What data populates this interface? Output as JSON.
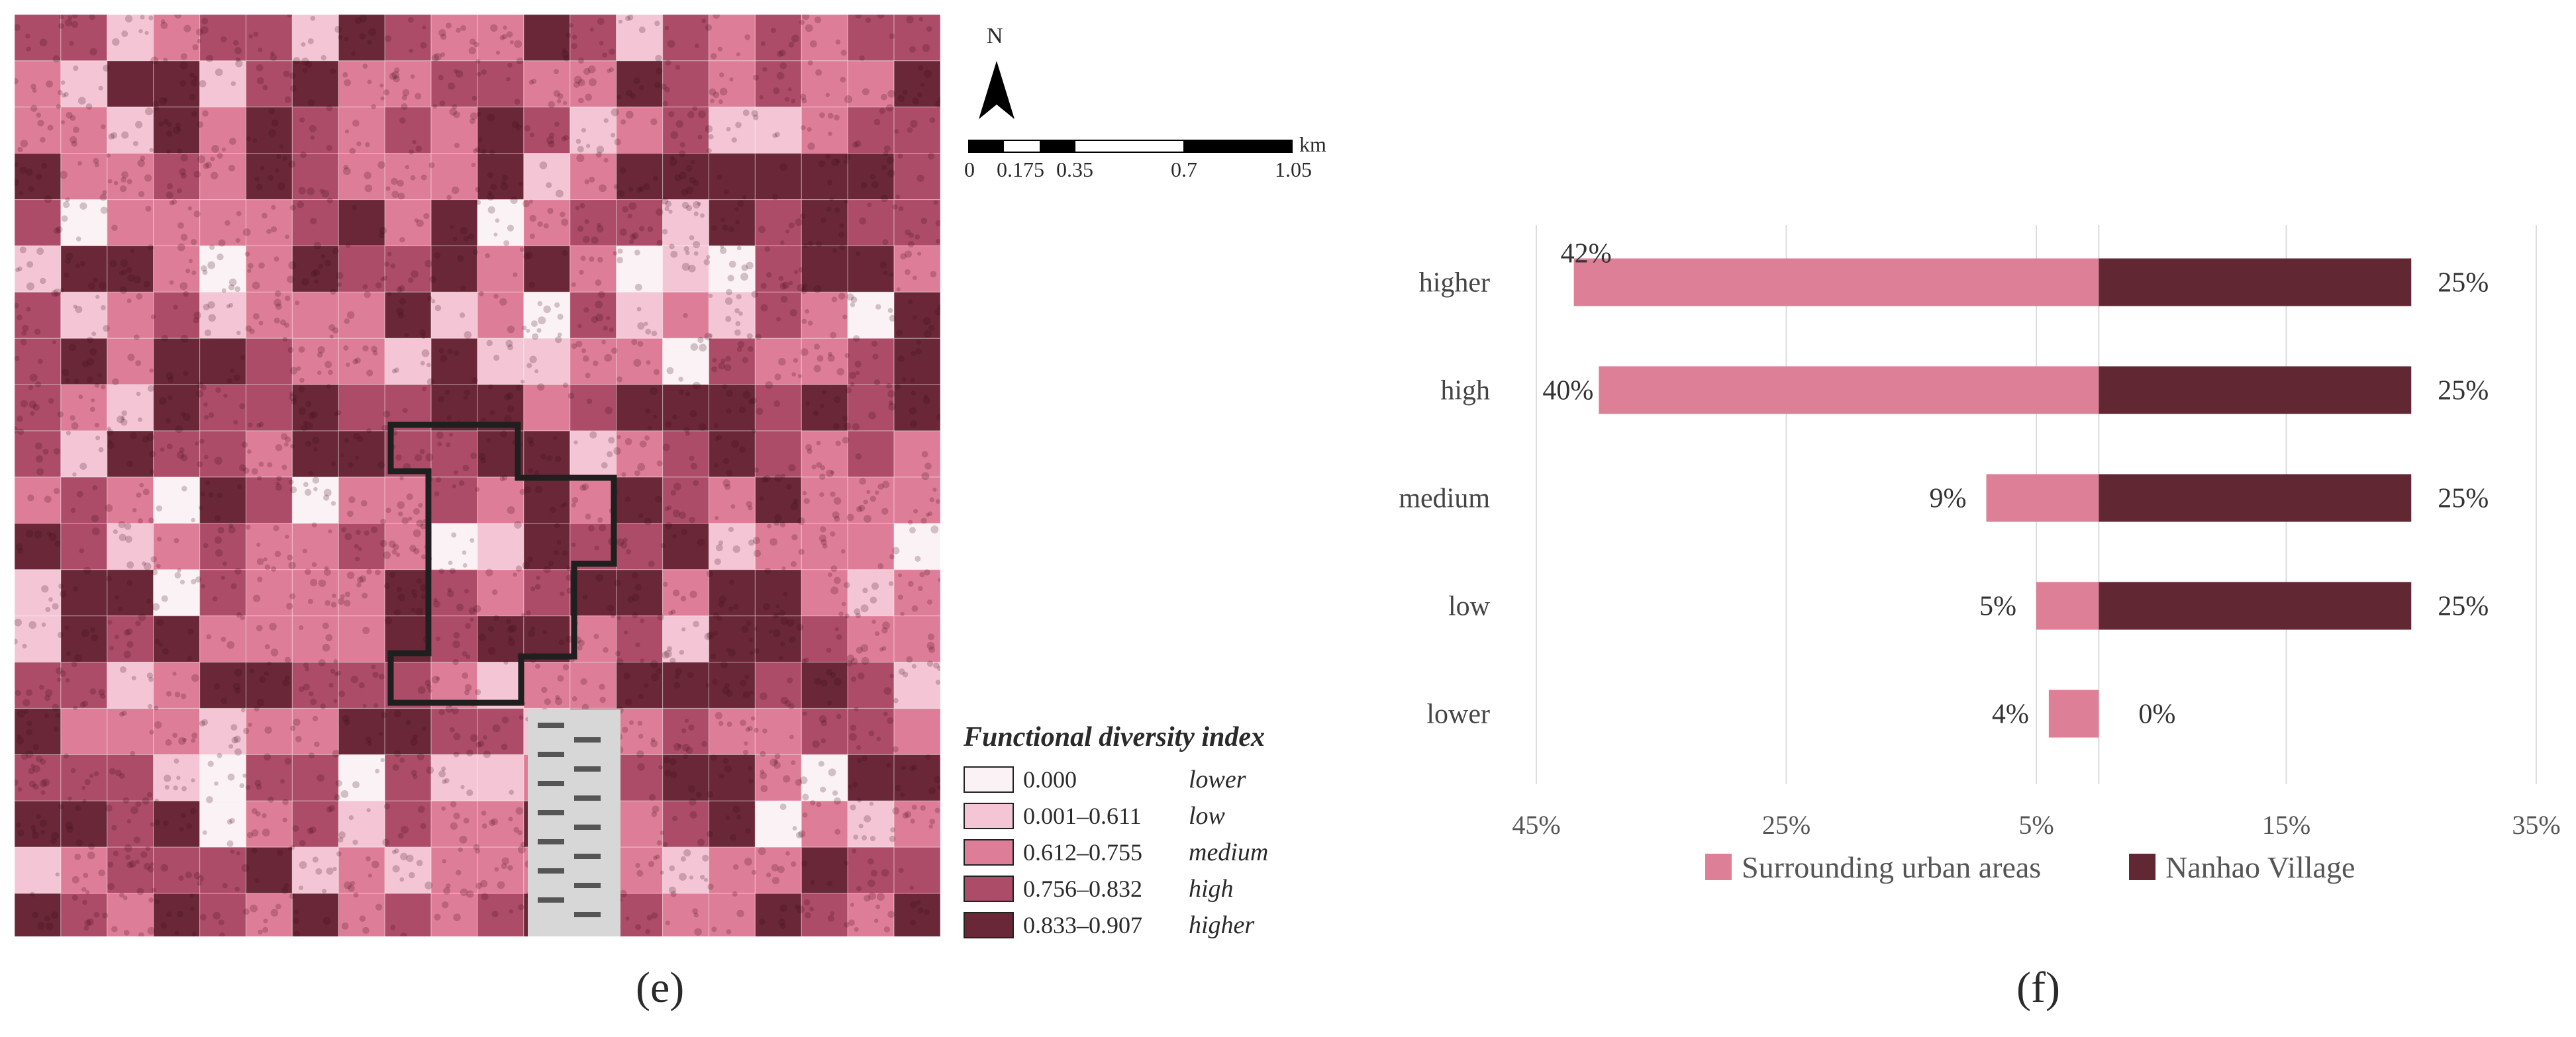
{
  "map": {
    "north_label": "N",
    "scale_unit": "km",
    "scale_ticks": [
      "0",
      "0.175",
      "0.35",
      "0.7",
      "1.05"
    ],
    "legend": {
      "title": "Functional diversity index",
      "items": [
        {
          "range": "0.000",
          "class": "lower",
          "color": "#fbf2f5"
        },
        {
          "range": "0.001–0.611",
          "class": "low",
          "color": "#f4c6d5"
        },
        {
          "range": "0.612–0.755",
          "class": "medium",
          "color": "#de7d97"
        },
        {
          "range": "0.756–0.832",
          "class": "high",
          "color": "#ad4c68"
        },
        {
          "range": "0.833–0.907",
          "class": "higher",
          "color": "#692737"
        }
      ]
    },
    "caption": "(e)"
  },
  "chart_caption": "(f)",
  "chart_data": {
    "type": "bar",
    "orientation": "horizontal-diverging",
    "categories": [
      "higher",
      "high",
      "medium",
      "low",
      "lower"
    ],
    "series": [
      {
        "name": "Surrounding urban areas",
        "color": "#dd7f96",
        "values": [
          42,
          40,
          9,
          5,
          4
        ],
        "labels": [
          "42%",
          "40%",
          "9%",
          "5%",
          "4%"
        ]
      },
      {
        "name": "Nanhao Village",
        "color": "#612834",
        "values": [
          25,
          25,
          25,
          25,
          0
        ],
        "labels": [
          "25%",
          "25%",
          "25%",
          "25%",
          "0%"
        ]
      }
    ],
    "x_ticks": [
      "45%",
      "25%",
      "5%",
      "15%",
      "35%"
    ],
    "xlim": [
      -45,
      35
    ],
    "grid": true,
    "legend_position": "bottom"
  }
}
